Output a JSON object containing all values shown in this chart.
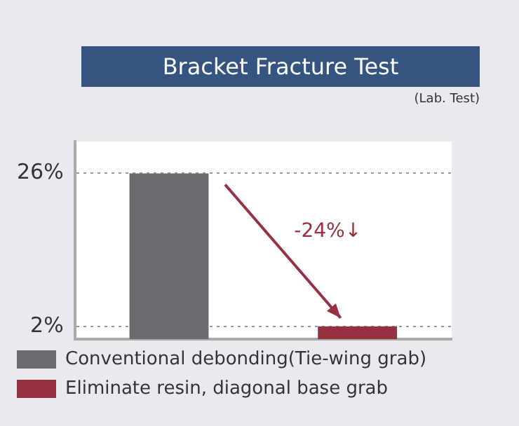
{
  "chart_data": {
    "type": "bar",
    "title": "Bracket Fracture Test",
    "subtitle": "(Lab. Test)",
    "categories": [
      null,
      null
    ],
    "series": [
      {
        "name": "Conventional debonding(Tie-wing grab)",
        "color": "#6b6b6f",
        "values": [
          26,
          null
        ]
      },
      {
        "name": "Eliminate resin, diagonal base grab",
        "color": "#98313f",
        "values": [
          null,
          2
        ]
      }
    ],
    "ylim": [
      0,
      31
    ],
    "yticks": [
      {
        "value": 2,
        "label": "2%"
      },
      {
        "value": 26,
        "label": "26%"
      }
    ],
    "grid": "y",
    "legend": "bottom",
    "tick_labels": "y",
    "annotations": [
      "-24%↓"
    ]
  }
}
